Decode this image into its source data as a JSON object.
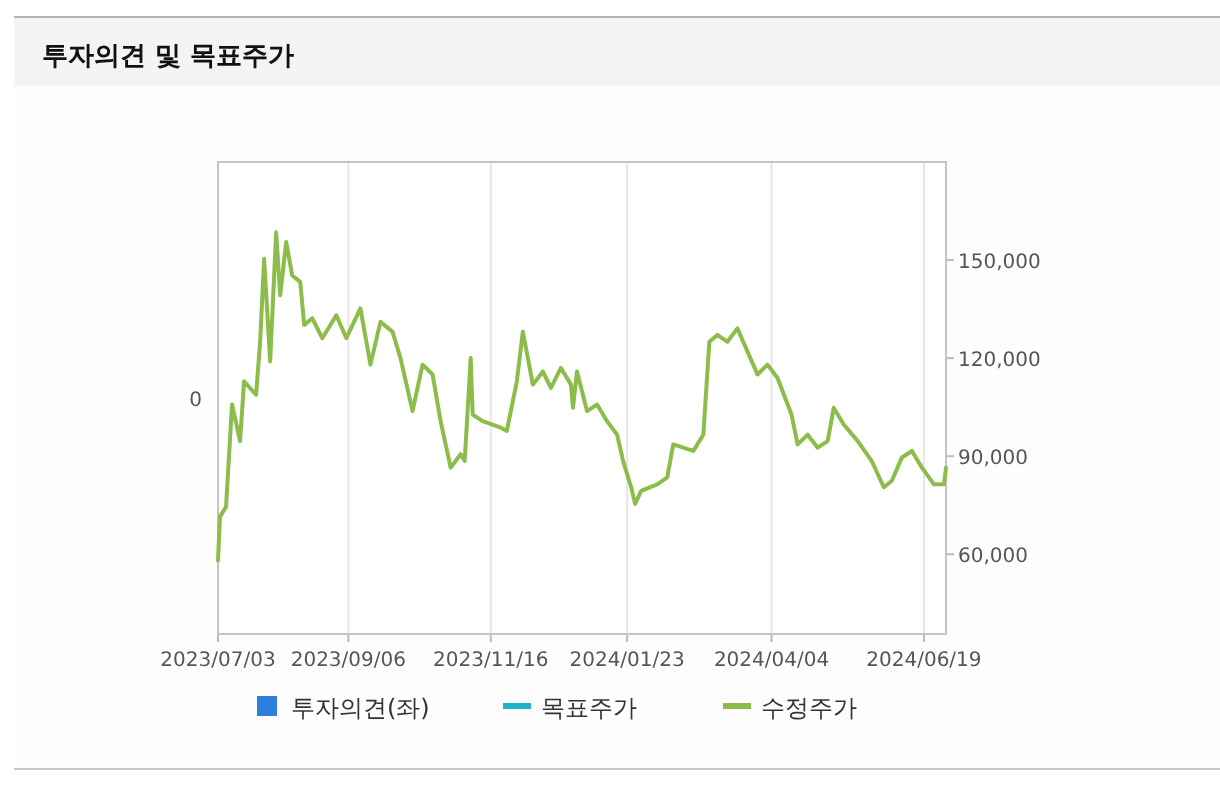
{
  "chart_data": {
    "type": "line",
    "title": "투자의견 및 목표주가",
    "xlim": [
      "2023-07-03",
      "2024-06-30"
    ],
    "xticks": [
      {
        "value": "2023-07-03",
        "label": "2023/07/03"
      },
      {
        "value": "2023-09-06",
        "label": "2023/09/06"
      },
      {
        "value": "2023-11-16",
        "label": "2023/11/16"
      },
      {
        "value": "2024-01-23",
        "label": "2024/01/23"
      },
      {
        "value": "2024-04-04",
        "label": "2024/04/04"
      },
      {
        "value": "2024-06-19",
        "label": "2024/06/19"
      }
    ],
    "annotations": [
      "0"
    ],
    "ylim": [
      35600,
      180000
    ],
    "yticks": [
      {
        "value": 60000,
        "label": "60,000"
      },
      {
        "value": 90000,
        "label": "90,000"
      },
      {
        "value": 120000,
        "label": "120,000"
      },
      {
        "value": 150000,
        "label": "150,000"
      }
    ],
    "grid": "x",
    "legend": "bottom",
    "series": [
      {
        "name": "투자의견(좌)",
        "type": "bar",
        "color": "#2f7fe0"
      },
      {
        "name": "목표주가",
        "color": "#1fb3c9"
      },
      {
        "name": "수정주가",
        "color": "#8cbd4a",
        "x": [
          "2023-07-03",
          "2023-07-04",
          "2023-07-07",
          "2023-07-10",
          "2023-07-14",
          "2023-07-16",
          "2023-07-22",
          "2023-07-24",
          "2023-07-26",
          "2023-07-29",
          "2023-08-01",
          "2023-08-03",
          "2023-08-06",
          "2023-08-09",
          "2023-08-13",
          "2023-08-15",
          "2023-08-19",
          "2023-08-24",
          "2023-08-31",
          "2023-09-05",
          "2023-09-12",
          "2023-09-17",
          "2023-09-22",
          "2023-09-28",
          "2023-10-02",
          "2023-10-08",
          "2023-10-13",
          "2023-10-18",
          "2023-10-22",
          "2023-10-27",
          "2023-11-01",
          "2023-11-03",
          "2023-11-06",
          "2023-11-07",
          "2023-11-12",
          "2023-11-21",
          "2023-11-24",
          "2023-11-29",
          "2023-12-02",
          "2023-12-07",
          "2023-12-12",
          "2023-12-16",
          "2023-12-21",
          "2023-12-26",
          "2023-12-27",
          "2023-12-29",
          "2024-01-03",
          "2024-01-08",
          "2024-01-13",
          "2024-01-18",
          "2024-01-21",
          "2024-01-25",
          "2024-01-27",
          "2024-01-30",
          "2024-02-07",
          "2024-02-12",
          "2024-02-15",
          "2024-02-20",
          "2024-02-25",
          "2024-03-01",
          "2024-03-04",
          "2024-03-08",
          "2024-03-13",
          "2024-03-18",
          "2024-03-23",
          "2024-03-28",
          "2024-04-02",
          "2024-04-07",
          "2024-04-14",
          "2024-04-17",
          "2024-04-22",
          "2024-04-27",
          "2024-05-02",
          "2024-05-05",
          "2024-05-10",
          "2024-05-17",
          "2024-05-24",
          "2024-05-30",
          "2024-06-03",
          "2024-06-08",
          "2024-06-13",
          "2024-06-18",
          "2024-06-24",
          "2024-06-29",
          "2024-06-30"
        ],
        "values": [
          58100,
          71500,
          74500,
          105800,
          94600,
          112900,
          108800,
          125000,
          150400,
          119000,
          158500,
          139200,
          155500,
          145300,
          143300,
          130100,
          132200,
          126100,
          133100,
          126100,
          135200,
          118000,
          131100,
          128100,
          120000,
          103800,
          118000,
          115000,
          100700,
          86500,
          90600,
          88500,
          120000,
          102700,
          100700,
          98700,
          97700,
          112900,
          128100,
          111900,
          115900,
          110900,
          117000,
          111900,
          104800,
          115900,
          103800,
          105800,
          100700,
          96600,
          88500,
          80500,
          75400,
          79400,
          81400,
          83500,
          93600,
          92600,
          91600,
          96600,
          125000,
          127100,
          125000,
          129100,
          122000,
          115000,
          118000,
          113900,
          102700,
          93600,
          96600,
          92600,
          94600,
          104800,
          99700,
          94600,
          88500,
          80500,
          82500,
          89600,
          91600,
          86500,
          81400,
          81400,
          86500
        ]
      }
    ]
  }
}
